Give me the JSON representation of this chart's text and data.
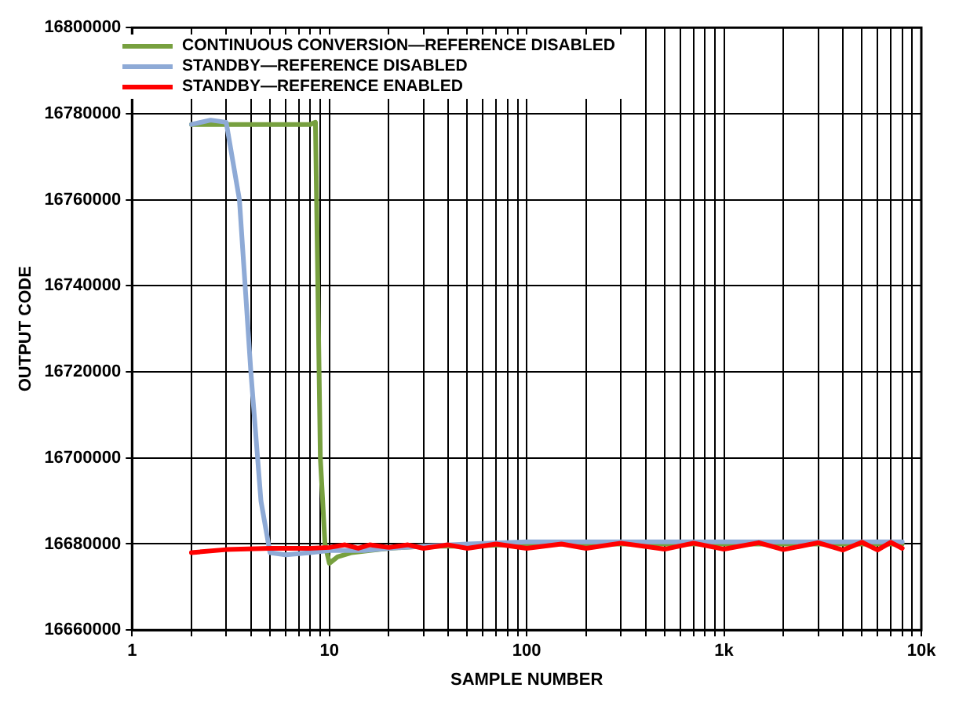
{
  "chart_data": {
    "type": "line",
    "xlabel": "SAMPLE NUMBER",
    "ylabel": "OUTPUT CODE",
    "log": "x",
    "grid": true,
    "legend": "top left",
    "marker": "none",
    "line_style": "solid",
    "xlim": [
      1,
      10000
    ],
    "xticks": [
      {
        "value": 1,
        "label": "1"
      },
      {
        "value": 2,
        "label": null
      },
      {
        "value": 3,
        "label": null
      },
      {
        "value": 4,
        "label": null
      },
      {
        "value": 5,
        "label": null
      },
      {
        "value": 6,
        "label": null
      },
      {
        "value": 7,
        "label": null
      },
      {
        "value": 8,
        "label": null
      },
      {
        "value": 9,
        "label": null
      },
      {
        "value": 10,
        "label": "10"
      },
      {
        "value": 20,
        "label": null
      },
      {
        "value": 30,
        "label": null
      },
      {
        "value": 40,
        "label": null
      },
      {
        "value": 50,
        "label": null
      },
      {
        "value": 60,
        "label": null
      },
      {
        "value": 70,
        "label": null
      },
      {
        "value": 80,
        "label": null
      },
      {
        "value": 90,
        "label": null
      },
      {
        "value": 100,
        "label": "100"
      },
      {
        "value": 200,
        "label": null
      },
      {
        "value": 300,
        "label": null
      },
      {
        "value": 400,
        "label": null
      },
      {
        "value": 500,
        "label": null
      },
      {
        "value": 600,
        "label": null
      },
      {
        "value": 700,
        "label": null
      },
      {
        "value": 800,
        "label": null
      },
      {
        "value": 900,
        "label": null
      },
      {
        "value": 1000,
        "label": "1k"
      },
      {
        "value": 2000,
        "label": null
      },
      {
        "value": 3000,
        "label": null
      },
      {
        "value": 4000,
        "label": null
      },
      {
        "value": 5000,
        "label": null
      },
      {
        "value": 6000,
        "label": null
      },
      {
        "value": 7000,
        "label": null
      },
      {
        "value": 8000,
        "label": null
      },
      {
        "value": 9000,
        "label": null
      },
      {
        "value": 10000,
        "label": "10k"
      }
    ],
    "ylim": [
      16660000,
      16800000
    ],
    "yticks": [
      16660000,
      16680000,
      16700000,
      16720000,
      16740000,
      16760000,
      16780000,
      16800000
    ],
    "series": [
      {
        "name": "CONTINUOUS CONVERSION—REFERENCE DISABLED",
        "color": "#77a03f",
        "x": [
          2,
          3,
          4,
          5,
          6,
          7,
          8,
          8.5,
          9,
          9.5,
          10,
          11,
          13,
          16,
          20,
          30,
          50,
          100,
          200,
          500,
          1000,
          2000,
          5000,
          8000
        ],
        "values": [
          16777500,
          16777500,
          16777500,
          16777500,
          16777500,
          16777500,
          16777500,
          16778000,
          16700000,
          16680000,
          16675500,
          16677000,
          16678000,
          16678500,
          16679000,
          16679500,
          16679500,
          16680000,
          16680000,
          16680000,
          16680000,
          16680000,
          16680000,
          16680000
        ]
      },
      {
        "name": "STANDBY—REFERENCE DISABLED",
        "color": "#8eaad6",
        "x": [
          2,
          2.5,
          3,
          3.5,
          4,
          4.5,
          5,
          6,
          8,
          10,
          12,
          15,
          20,
          30,
          50,
          100,
          200,
          500,
          1000,
          2000,
          5000,
          8000
        ],
        "values": [
          16777500,
          16778500,
          16778000,
          16760000,
          16720000,
          16690000,
          16678000,
          16677500,
          16678000,
          16678500,
          16678500,
          16678500,
          16679000,
          16679500,
          16680000,
          16680500,
          16680500,
          16680500,
          16680500,
          16680500,
          16680500,
          16680500
        ]
      },
      {
        "name": "STANDBY—REFERENCE ENABLED",
        "color": "#ff0000",
        "x": [
          2,
          3,
          5,
          8,
          10,
          12,
          14,
          16,
          20,
          25,
          30,
          40,
          50,
          70,
          100,
          150,
          200,
          300,
          500,
          700,
          1000,
          1500,
          2000,
          3000,
          4000,
          5000,
          6000,
          7000,
          8000
        ],
        "values": [
          16678000,
          16678700,
          16679000,
          16679000,
          16679200,
          16679800,
          16679000,
          16679800,
          16679200,
          16679800,
          16679000,
          16679800,
          16679000,
          16680000,
          16679000,
          16680000,
          16679000,
          16680200,
          16678800,
          16680200,
          16678800,
          16680300,
          16678700,
          16680300,
          16678600,
          16680400,
          16678600,
          16680400,
          16679000
        ]
      }
    ]
  }
}
